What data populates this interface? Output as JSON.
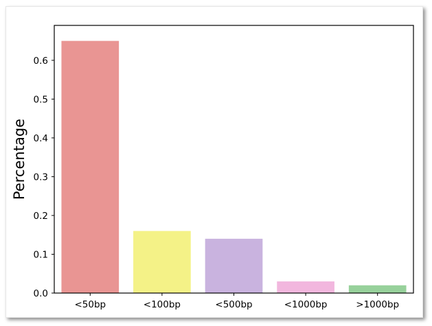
{
  "chart_data": {
    "type": "bar",
    "title": "",
    "xlabel": "",
    "ylabel": "Percentage",
    "categories": [
      "<50bp",
      "<100bp",
      "<500bp",
      "<1000bp",
      ">1000bp"
    ],
    "values": [
      0.65,
      0.16,
      0.14,
      0.03,
      0.02
    ],
    "colors": [
      "#e99593",
      "#f4f287",
      "#c9b3df",
      "#f2b7de",
      "#97d19b"
    ],
    "ylim": [
      0,
      0.69
    ],
    "yticks": [
      0.0,
      0.1,
      0.2,
      0.3,
      0.4,
      0.5,
      0.6
    ],
    "ytick_labels": [
      "0.0",
      "0.1",
      "0.2",
      "0.3",
      "0.4",
      "0.5",
      "0.6"
    ],
    "grid": false,
    "legend": "none"
  }
}
